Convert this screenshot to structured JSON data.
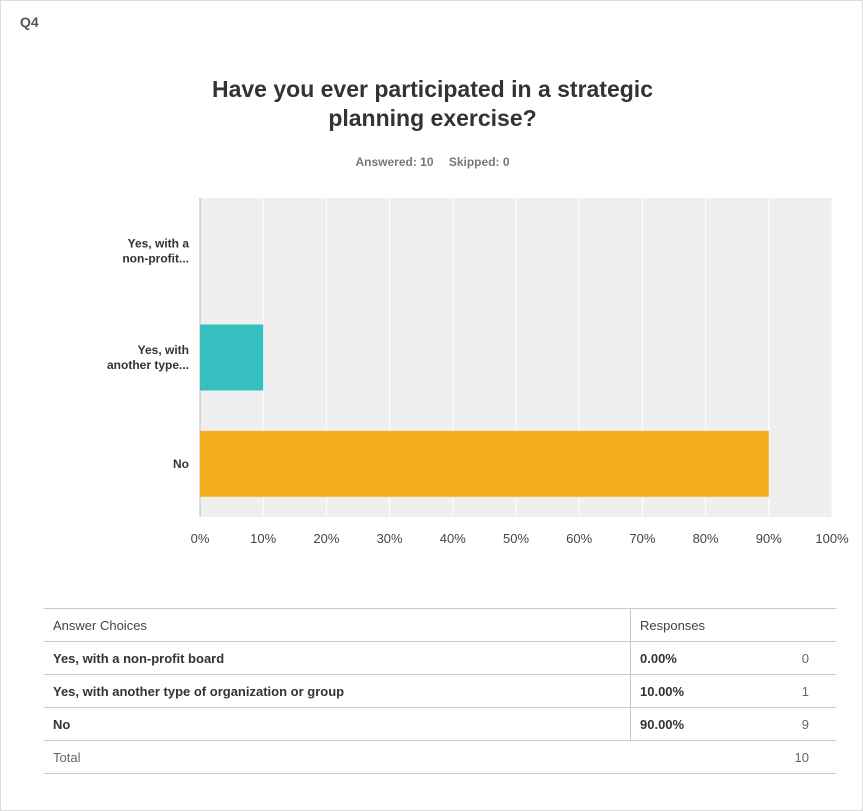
{
  "question": {
    "number": "Q4",
    "title_line1": "Have you ever participated in a strategic",
    "title_line2": "planning exercise?",
    "answered": "Answered: 10",
    "skipped": "Skipped: 0"
  },
  "chart_data": {
    "type": "bar",
    "orientation": "horizontal",
    "categories": [
      "Yes, with a non-profit...",
      "Yes, with another type...",
      "No"
    ],
    "category_label_lines": [
      [
        "Yes, with a",
        "non-profit..."
      ],
      [
        "Yes, with",
        "another type..."
      ],
      [
        "No"
      ]
    ],
    "values": [
      0,
      10,
      90
    ],
    "colors": [
      "#d9d9d9",
      "#35bfbf",
      "#f5ae20"
    ],
    "xlim": [
      0,
      100
    ],
    "x_ticks": [
      "0%",
      "10%",
      "20%",
      "30%",
      "40%",
      "50%",
      "60%",
      "70%",
      "80%",
      "90%",
      "100%"
    ],
    "grid": true,
    "plot_background": "#efefef"
  },
  "table": {
    "header": {
      "choice": "Answer Choices",
      "responses": "Responses"
    },
    "rows": [
      {
        "choice": "Yes, with a non-profit board",
        "percent": "0.00%",
        "count": "0"
      },
      {
        "choice": "Yes, with another type of organization or group",
        "percent": "10.00%",
        "count": "1"
      },
      {
        "choice": "No",
        "percent": "90.00%",
        "count": "9"
      }
    ],
    "total_label": "Total",
    "total_count": "10"
  }
}
